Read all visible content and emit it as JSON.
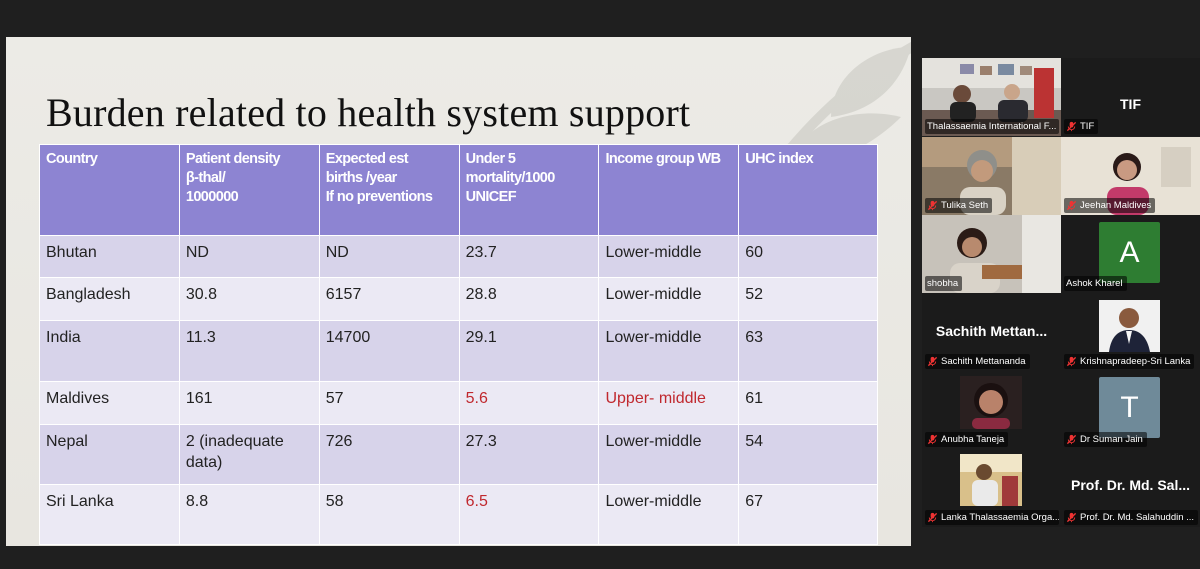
{
  "slide": {
    "title": "Burden related to health system support",
    "table": {
      "headers": [
        [
          "Country"
        ],
        [
          "Patient density",
          "β-thal/",
          "1000000"
        ],
        [
          "Expected est",
          "births /year",
          "If no preventions"
        ],
        [
          "Under 5",
          "mortality/1000",
          "UNICEF"
        ],
        [
          "Income group WB"
        ],
        [
          "UHC index"
        ]
      ],
      "rows": [
        {
          "country": "Bhutan",
          "density": "ND",
          "births": "ND",
          "mortality": "23.7",
          "income": "Lower-middle",
          "uhc": "60"
        },
        {
          "country": "Bangladesh",
          "density": "30.8",
          "births": "6157",
          "mortality": "28.8",
          "income": "Lower-middle",
          "uhc": "52"
        },
        {
          "country": "India",
          "density": "11.3",
          "births": "14700",
          "mortality": "29.1",
          "income": "Lower-middle",
          "uhc": "63"
        },
        {
          "country": "Maldives",
          "density": "161",
          "births": "57",
          "mortality": "5.6",
          "income": "Upper- middle",
          "uhc": "61"
        },
        {
          "country": "Nepal",
          "density": "2 (inadequate data)",
          "births": "726",
          "mortality": "27.3",
          "income": "Lower-middle",
          "uhc": "54"
        },
        {
          "country": "Sri Lanka",
          "density": "8.8",
          "births": "58",
          "mortality": "6.5",
          "income": "Lower-middle",
          "uhc": "67"
        }
      ],
      "highlight_color": "#c0282e",
      "header_color": "#8d84d2"
    }
  },
  "participants": [
    {
      "name": "Thalassaemia International F...",
      "type": "video",
      "active": true
    },
    {
      "name": "TIF",
      "display": "TIF",
      "type": "name"
    },
    {
      "name": "Tulika Seth",
      "type": "video"
    },
    {
      "name": "Jeehan Maldives",
      "type": "video"
    },
    {
      "name": "shobha",
      "type": "video"
    },
    {
      "name": "Ashok Kharel",
      "letter": "A",
      "color": "#2e7d32",
      "type": "letter"
    },
    {
      "name": "Sachith Mettananda",
      "display": "Sachith  Mettan...",
      "type": "name"
    },
    {
      "name": "Krishnapradeep-Sri Lanka",
      "type": "photo"
    },
    {
      "name": "Anubha Taneja",
      "type": "photo"
    },
    {
      "name": "Dr Suman Jain",
      "letter": "T",
      "color": "#6f8a99",
      "type": "letter"
    },
    {
      "name": "Lanka Thalassaemia Orga...",
      "type": "photo"
    },
    {
      "name": "Prof. Dr. Md. Salahuddin ...",
      "display": "Prof. Dr. Md. Sal...",
      "type": "name"
    }
  ],
  "icons": {
    "muted": "mic-off-icon"
  }
}
